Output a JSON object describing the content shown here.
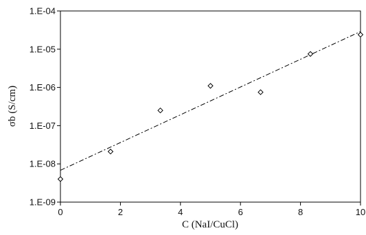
{
  "chart_data": {
    "type": "scatter",
    "title": "",
    "xlabel": "C (NaI/CuCl)",
    "ylabel": "σb (S/cm)",
    "xlim": [
      0,
      10
    ],
    "ylim": [
      1e-09,
      0.0001
    ],
    "y_scale": "log",
    "x_ticks": [
      0,
      2,
      4,
      6,
      8,
      10
    ],
    "x_tick_labels": [
      "0",
      "2",
      "4",
      "6",
      "8",
      "10"
    ],
    "y_ticks": [
      1e-09,
      1e-08,
      1e-07,
      1e-06,
      1e-05,
      0.0001
    ],
    "y_tick_labels": [
      "1.E-09",
      "1.E-08",
      "1.E-07",
      "1.E-06",
      "1.E-05",
      "1.E-04"
    ],
    "grid": false,
    "legend": "none",
    "series": [
      {
        "marker": "diamond",
        "x": [
          0,
          1.67,
          3.33,
          5.0,
          6.67,
          8.33,
          10.0
        ],
        "y": [
          4e-09,
          2.1e-08,
          2.5e-07,
          1.1e-06,
          7.5e-07,
          7.5e-06,
          2.4e-05
        ]
      }
    ],
    "trendline": {
      "style": "dash-dot",
      "x": [
        0,
        10
      ],
      "y": [
        6.8e-09,
        2.9e-05
      ]
    }
  },
  "colors": {
    "axis": "#000000",
    "marker": "#000000",
    "trendline": "#000000"
  }
}
